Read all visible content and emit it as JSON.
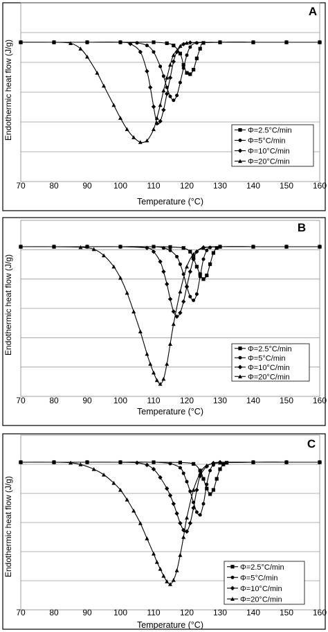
{
  "chart_data": [
    {
      "panel": "A",
      "type": "line",
      "xlabel": "Temperature (°C)",
      "ylabel": "Endothermic heat flow (J/g)",
      "xlim": [
        70,
        160
      ],
      "xticks": [
        "70",
        "80",
        "90",
        "100",
        "110",
        "120",
        "130",
        "140",
        "150",
        "160"
      ],
      "y_gridlines": 6,
      "legend": "bottom-right",
      "series": [
        {
          "name": "Φ=2.5°C/min",
          "marker": "square",
          "x": [
            70,
            80,
            90,
            100,
            110,
            114,
            116,
            118,
            119,
            120,
            121,
            122,
            123,
            124,
            125,
            130,
            140,
            150,
            160
          ],
          "y": [
            0,
            0,
            0,
            0,
            0,
            -0.03,
            -0.1,
            -0.35,
            -0.7,
            -0.95,
            -0.99,
            -0.85,
            -0.5,
            -0.2,
            -0.02,
            0,
            0,
            0,
            0
          ]
        },
        {
          "name": "Φ=5°C/min",
          "marker": "circle",
          "x": [
            70,
            80,
            90,
            100,
            105,
            108,
            110,
            112,
            113,
            114,
            115,
            116,
            117,
            118,
            119,
            120,
            121,
            123,
            130,
            140,
            150,
            160
          ],
          "y": [
            0,
            0,
            0,
            0,
            -0.02,
            -0.1,
            -0.3,
            -0.75,
            -1.05,
            -1.4,
            -1.68,
            -1.8,
            -1.65,
            -1.25,
            -0.8,
            -0.4,
            -0.15,
            -0.02,
            0,
            0,
            0,
            0
          ]
        },
        {
          "name": "Φ=10°C/min",
          "marker": "diamond",
          "x": [
            70,
            80,
            90,
            100,
            103,
            106,
            108,
            109,
            110,
            111,
            112,
            113,
            114,
            115,
            116,
            117,
            119,
            121,
            130,
            140,
            150,
            160
          ],
          "y": [
            0,
            0,
            0,
            0,
            -0.05,
            -0.3,
            -0.9,
            -1.4,
            -2.0,
            -2.52,
            -2.45,
            -2.1,
            -1.6,
            -1.1,
            -0.6,
            -0.3,
            -0.06,
            -0.01,
            0,
            0,
            0,
            0
          ]
        },
        {
          "name": "Φ=20°C/min",
          "marker": "triangle",
          "x": [
            70,
            80,
            85,
            88,
            90,
            93,
            95,
            98,
            100,
            102,
            104,
            106,
            108,
            110,
            111,
            112,
            113,
            114,
            115,
            116,
            118,
            120,
            130,
            140,
            150,
            160
          ],
          "y": [
            0,
            0,
            -0.03,
            -0.2,
            -0.45,
            -0.95,
            -1.35,
            -1.95,
            -2.35,
            -2.7,
            -2.95,
            -3.1,
            -3.05,
            -2.7,
            -2.35,
            -1.95,
            -1.5,
            -1.1,
            -0.7,
            -0.4,
            -0.12,
            -0.02,
            0,
            0,
            0,
            0
          ]
        }
      ]
    },
    {
      "panel": "B",
      "type": "line",
      "xlabel": "Temperature (°C)",
      "ylabel": "Endothermic heat flow (J/g)",
      "xlim": [
        70,
        160
      ],
      "xticks": [
        "70",
        "80",
        "90",
        "100",
        "110",
        "120",
        "130",
        "140",
        "150",
        "160"
      ],
      "y_gridlines": 6,
      "legend": "bottom-right",
      "series": [
        {
          "name": "Φ=2.5°C/min",
          "marker": "square",
          "x": [
            70,
            80,
            90,
            100,
            110,
            115,
            119,
            121,
            122,
            123,
            124,
            125,
            126,
            127,
            128,
            129,
            130,
            140,
            150,
            160
          ],
          "y": [
            0,
            0,
            0,
            0,
            0,
            -0.01,
            -0.05,
            -0.2,
            -0.45,
            -0.8,
            -1.1,
            -1.3,
            -1.15,
            -0.7,
            -0.25,
            -0.05,
            0,
            0,
            0,
            0
          ]
        },
        {
          "name": "Φ=5°C/min",
          "marker": "circle",
          "x": [
            70,
            80,
            90,
            100,
            110,
            113,
            115,
            117,
            118,
            119,
            120,
            121,
            122,
            123,
            124,
            125,
            126,
            127,
            130,
            140,
            150,
            160
          ],
          "y": [
            0,
            0,
            0,
            0,
            0,
            -0.05,
            -0.15,
            -0.4,
            -0.7,
            -1.1,
            -1.6,
            -2.0,
            -2.15,
            -1.9,
            -1.2,
            -0.5,
            -0.15,
            -0.03,
            0,
            0,
            0,
            0
          ]
        },
        {
          "name": "Φ=10°C/min",
          "marker": "diamond",
          "x": [
            70,
            80,
            90,
            100,
            108,
            110,
            112,
            113,
            114,
            115,
            116,
            117,
            118,
            119,
            120,
            121,
            122,
            123,
            125,
            130,
            140,
            150,
            160
          ],
          "y": [
            0,
            0,
            0,
            0,
            -0.05,
            -0.2,
            -0.6,
            -1.0,
            -1.5,
            -2.1,
            -2.6,
            -2.8,
            -2.65,
            -2.2,
            -1.6,
            -1.0,
            -0.5,
            -0.2,
            -0.03,
            0,
            0,
            0,
            0
          ]
        },
        {
          "name": "Φ=20°C/min",
          "marker": "triangle",
          "x": [
            70,
            80,
            88,
            92,
            95,
            98,
            100,
            102,
            104,
            106,
            108,
            109,
            110,
            111,
            112,
            113,
            114,
            115,
            116,
            118,
            120,
            122,
            125,
            130,
            140,
            150,
            160
          ],
          "y": [
            0,
            0,
            -0.02,
            -0.1,
            -0.35,
            -0.8,
            -1.25,
            -1.85,
            -2.6,
            -3.4,
            -4.3,
            -4.7,
            -5.05,
            -5.35,
            -5.5,
            -5.3,
            -4.7,
            -3.9,
            -3.1,
            -1.8,
            -0.8,
            -0.3,
            -0.05,
            0,
            0,
            0,
            0
          ]
        }
      ]
    },
    {
      "panel": "C",
      "type": "line",
      "xlabel": "Temperature (°C)",
      "ylabel": "Endothermic heat flow (J/g)",
      "xlim": [
        70,
        160
      ],
      "xticks": [
        "70",
        "80",
        "90",
        "100",
        "110",
        "120",
        "130",
        "140",
        "150",
        "160"
      ],
      "y_gridlines": 6,
      "legend": "bottom-right",
      "series": [
        {
          "name": "Φ=2.5°C/min",
          "marker": "square",
          "x": [
            70,
            80,
            90,
            100,
            110,
            118,
            122,
            124,
            125,
            126,
            127,
            128,
            129,
            130,
            131,
            132,
            140,
            150,
            160
          ],
          "y": [
            0,
            0,
            0,
            0,
            0,
            -0.01,
            -0.06,
            -0.3,
            -0.6,
            -0.95,
            -1.15,
            -1.0,
            -0.6,
            -0.25,
            -0.08,
            -0.02,
            0,
            0,
            0
          ]
        },
        {
          "name": "Φ=5°C/min",
          "marker": "circle",
          "x": [
            70,
            80,
            90,
            100,
            110,
            115,
            118,
            119,
            120,
            121,
            122,
            123,
            124,
            125,
            126,
            127,
            128,
            130,
            140,
            150,
            160
          ],
          "y": [
            0,
            0,
            0,
            0,
            0,
            -0.05,
            -0.2,
            -0.4,
            -0.7,
            -1.05,
            -1.45,
            -1.8,
            -1.9,
            -1.5,
            -0.8,
            -0.3,
            -0.1,
            -0.02,
            0,
            0,
            0
          ]
        },
        {
          "name": "Φ=10°C/min",
          "marker": "diamond",
          "x": [
            70,
            80,
            90,
            100,
            105,
            108,
            110,
            112,
            114,
            115,
            116,
            117,
            118,
            119,
            120,
            121,
            122,
            123,
            124,
            126,
            128,
            130,
            140,
            150,
            160
          ],
          "y": [
            0,
            0,
            0,
            0,
            -0.02,
            -0.1,
            -0.25,
            -0.55,
            -0.95,
            -1.2,
            -1.5,
            -1.85,
            -2.2,
            -2.45,
            -2.5,
            -2.2,
            -1.65,
            -1.0,
            -0.5,
            -0.15,
            -0.03,
            0,
            0,
            0,
            0
          ]
        },
        {
          "name": "Φ=20°C/min",
          "marker": "triangle",
          "x": [
            70,
            80,
            85,
            88,
            92,
            95,
            98,
            100,
            102,
            104,
            106,
            108,
            110,
            111,
            112,
            113,
            114,
            115,
            116,
            117,
            118,
            119,
            120,
            122,
            124,
            126,
            130,
            140,
            150,
            160
          ],
          "y": [
            0,
            0,
            -0.02,
            -0.08,
            -0.25,
            -0.45,
            -0.75,
            -1.0,
            -1.35,
            -1.75,
            -2.2,
            -2.75,
            -3.3,
            -3.6,
            -3.85,
            -4.1,
            -4.3,
            -4.4,
            -4.25,
            -3.9,
            -3.35,
            -2.7,
            -2.0,
            -1.0,
            -0.4,
            -0.12,
            -0.02,
            0,
            0,
            0
          ]
        }
      ]
    }
  ]
}
